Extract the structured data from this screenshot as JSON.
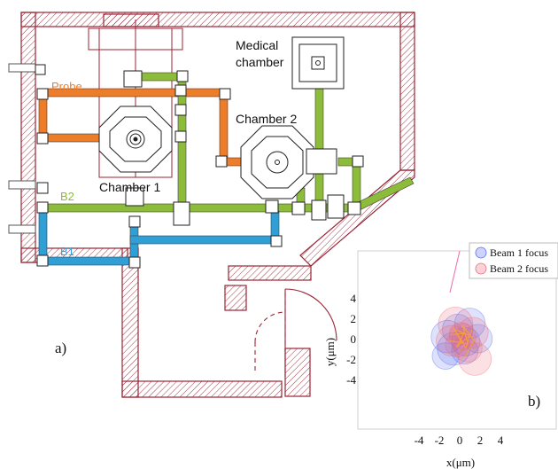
{
  "colors": {
    "wall": "#9b2335",
    "probe": "#ee7d2a",
    "b2": "#8dbb3a",
    "b1": "#2f9fd6",
    "beam1": "#5b6ef0",
    "beam2": "#f06a7a",
    "track": "#f4a33b"
  },
  "labels": {
    "probe": "Probe",
    "b2": "B2",
    "b1": "B1",
    "chamber1": "Chamber 1",
    "chamber2": "Chamber 2",
    "medical_line1": "Medical",
    "medical_line2": "chamber",
    "panel_a": "a)",
    "panel_b": "b)"
  },
  "chart_data": {
    "type": "scatter",
    "xlabel": "x(μm)",
    "ylabel": "y(μm)",
    "xlim": [
      -5,
      5
    ],
    "ylim": [
      -5,
      5
    ],
    "xticks": [
      "-4",
      "-2",
      "0",
      "2",
      "4"
    ],
    "yticks": [
      "4",
      "2",
      "0",
      "-2",
      "-4"
    ],
    "legend": [
      "Beam 1 focus",
      "Beam 2 focus"
    ],
    "legend_position": "top-right",
    "series": [
      {
        "name": "Beam 1 focus",
        "circles": [
          {
            "x": -1.2,
            "y": 0.2,
            "r": 1.6
          },
          {
            "x": 1.0,
            "y": 1.5,
            "r": 1.5
          },
          {
            "x": -0.6,
            "y": -1.0,
            "r": 1.6
          },
          {
            "x": 0.6,
            "y": -0.3,
            "r": 1.4
          },
          {
            "x": -1.4,
            "y": -1.7,
            "r": 1.3
          },
          {
            "x": 1.8,
            "y": 0.0,
            "r": 1.4
          },
          {
            "x": -0.2,
            "y": 0.9,
            "r": 1.5
          },
          {
            "x": 0.5,
            "y": -1.2,
            "r": 1.3
          }
        ]
      },
      {
        "name": "Beam 2 focus",
        "circles": [
          {
            "x": -0.4,
            "y": 1.4,
            "r": 1.7
          },
          {
            "x": 1.3,
            "y": 0.6,
            "r": 1.5
          },
          {
            "x": 1.5,
            "y": -2.0,
            "r": 1.6
          },
          {
            "x": -0.8,
            "y": -0.2,
            "r": 1.5
          },
          {
            "x": 0.3,
            "y": 0.2,
            "r": 1.3
          },
          {
            "x": 0.8,
            "y": -0.9,
            "r": 1.4
          },
          {
            "x": -0.2,
            "y": -0.6,
            "r": 1.2
          },
          {
            "x": 0.1,
            "y": 0.5,
            "r": 1.1
          }
        ]
      }
    ],
    "tracks": [
      [
        [
          -0.9,
          0.4
        ],
        [
          0.4,
          0.5
        ],
        [
          -0.3,
          -0.8
        ],
        [
          1.0,
          0.3
        ],
        [
          -0.5,
          0.9
        ],
        [
          0.6,
          -0.9
        ],
        [
          1.2,
          0.9
        ]
      ],
      [
        [
          -0.6,
          1.1
        ],
        [
          0.2,
          -0.4
        ],
        [
          -1.0,
          -0.2
        ],
        [
          0.8,
          -0.5
        ],
        [
          0.3,
          1.3
        ],
        [
          1.4,
          -0.2
        ],
        [
          0.5,
          -1.8
        ]
      ]
    ]
  }
}
